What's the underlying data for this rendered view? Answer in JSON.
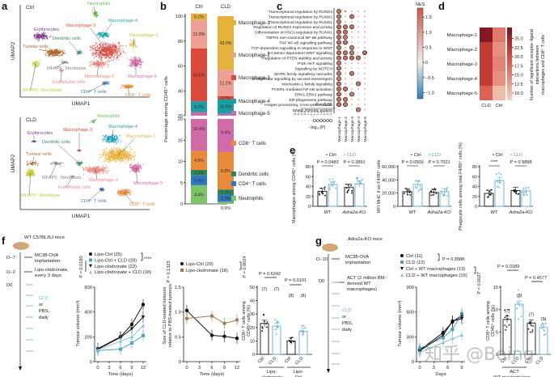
{
  "panel_labels": {
    "a": "a",
    "b": "b",
    "c": "c",
    "d": "d",
    "e": "e",
    "f": "f",
    "g": "g"
  },
  "watermark": "知乎 @Being",
  "chart_data": [
    {
      "id": "a-ctrl",
      "type": "scatter",
      "title": "Ctrl",
      "xlabel": "UMAP1",
      "ylabel": "UMAP2",
      "clusters": [
        {
          "name": "Neutrophils",
          "color": "#6abf4b"
        },
        {
          "name": "Macrophage-4",
          "color": "#1aa3b5"
        },
        {
          "name": "Macrophage-3",
          "color": "#d9463b"
        },
        {
          "name": "Macrophage-1",
          "color": "#e6b13a"
        },
        {
          "name": "Erythrocytes",
          "color": "#7b2f8e"
        },
        {
          "name": "Dendritic cells",
          "color": "#2e8b57"
        },
        {
          "name": "Tumour cells",
          "color": "#b4652a"
        },
        {
          "name": "MFAP5⁻ fibroblasts",
          "color": "#888888"
        },
        {
          "name": "Macrophage-2",
          "color": "#e8857a"
        },
        {
          "name": "Macrophage-5",
          "color": "#d16aa8"
        },
        {
          "name": "Endothelial cells",
          "color": "#e8889a"
        },
        {
          "name": "MFAP5⁺ fibroblasts",
          "color": "#c9c93a"
        },
        {
          "name": "CD4⁺ T cells",
          "color": "#2f78c2"
        },
        {
          "name": "CD8⁺ T cells",
          "color": "#e98b3a"
        }
      ]
    },
    {
      "id": "a-cld",
      "type": "scatter",
      "title": "CLD",
      "xlabel": "UMAP1",
      "ylabel": "UMAP2",
      "clusters": [
        {
          "name": "Neutrophils",
          "color": "#6abf4b"
        },
        {
          "name": "Erythrocytes",
          "color": "#7b2f8e"
        },
        {
          "name": "Macrophage-3",
          "color": "#d9463b"
        },
        {
          "name": "Macrophage-4",
          "color": "#1aa3b5"
        },
        {
          "name": "Macrophage-1",
          "color": "#e6b13a"
        },
        {
          "name": "Dendritic cells",
          "color": "#2e8b57"
        },
        {
          "name": "Tumour cells",
          "color": "#b4652a"
        },
        {
          "name": "MFAP5⁻ fibroblasts",
          "color": "#888888"
        },
        {
          "name": "Macrophage-2",
          "color": "#e8857a"
        },
        {
          "name": "Macrophage-5",
          "color": "#d16aa8"
        },
        {
          "name": "Endothelial cells",
          "color": "#e8889a"
        },
        {
          "name": "MFAP5⁺ fibroblasts",
          "color": "#c9c93a"
        },
        {
          "name": "CD4⁺ T cells",
          "color": "#2f78c2"
        },
        {
          "name": "CD8⁺ T cells",
          "color": "#e98b3a"
        }
      ]
    },
    {
      "id": "b",
      "type": "bar",
      "stacked": true,
      "categories": [
        "Ctrl",
        "CLD"
      ],
      "ylabel": "Percentage among CD45⁺ cells",
      "yticks_upper": [
        20,
        40,
        60,
        80,
        100
      ],
      "yticks_lower": [
        0,
        5,
        10,
        15,
        20
      ],
      "series": [
        {
          "name": "Neutrophils",
          "color": "#7cc36a",
          "values": [
            4.4,
            0.5
          ],
          "labels": [
            "4.4%",
            "0.5%"
          ]
        },
        {
          "name": "CD4⁺ T cells",
          "color": "#2f78c2",
          "values": [
            2.3,
            1.7
          ],
          "labels": [
            "2.3%",
            "1.7%"
          ]
        },
        {
          "name": "Dendritic cells",
          "color": "#2e8b57",
          "values": [
            1.3,
            1.2
          ],
          "labels": [
            "1.3%",
            "1.2%"
          ]
        },
        {
          "name": "CD8⁺ T cells",
          "color": "#e98b3a",
          "values": [
            4.5,
            8.8
          ],
          "labels": [
            "4.5%",
            "8.8%"
          ]
        },
        {
          "name": "Macrophage-5",
          "color": "#d16aa8",
          "values": [
            10.4,
            9.4
          ],
          "labels": [
            "10.4%",
            "9.4%"
          ]
        },
        {
          "name": "Macrophage-4",
          "color": "#1a9fa6",
          "values": [
            8.7,
            11.5
          ],
          "labels": [
            "8.7%",
            "11.5%"
          ]
        },
        {
          "name": "Macrophage-3",
          "color": "#d94a3b",
          "values": [
            42.6,
            2.7
          ],
          "labels": [
            "42.6%",
            "2.7%"
          ]
        },
        {
          "name": "Macrophage-2",
          "color": "#ec9f92",
          "values": [
            22.8,
            21.2
          ],
          "labels": [
            "22.8%",
            "21.2%"
          ]
        },
        {
          "name": "Macrophage-1",
          "color": "#e6b13a",
          "values": [
            5.1,
            43.0
          ],
          "labels": [
            "5.1%",
            "43.0%"
          ]
        }
      ],
      "legend": [
        "Macrophage-1",
        "Macrophage-2",
        "Macrophage-3",
        "Macrophage-4",
        "Macrophage-5",
        "CD8⁺ T cells",
        "Dendritic cells",
        "CD4⁺ T cells",
        "Neutrophils"
      ]
    },
    {
      "id": "c",
      "type": "heatmap",
      "subtype": "dotplot",
      "rows": [
        "Transcriptional regulation by RUNX3",
        "Transcriptional regulation by RUNX2",
        "Transcriptional regulation by RUNX1",
        "Regulation of RUNX2 expression and activity",
        "Differentiation of HSCs regulated by RUNX1",
        "TNFR2 non-canonical NF-κB pathway",
        "TNF NF-κB signalling pathway",
        "TCF-dependent signalling in response to WNT",
        "β-Catenin-dependent WNT signalling",
        "Regulation of PTEN stability and activity",
        "PI3K AKT signalling",
        "Signalling by NOTCH",
        "MAPK family signalling cascades",
        "Intracellular signalling by second messengers",
        "Interleukin-1 family signalling",
        "FCER1-mediated NF-κB activation",
        "ERK1 ERK2 pathway",
        "ER-phagosome pathway",
        "Antigen processing, cross-presentation",
        "Innate immune system"
      ],
      "columns": [
        "Macrophage-1",
        "Macrophage-2",
        "Macrophage-3",
        "Macrophage-4",
        "Macrophage-5"
      ],
      "nes": [
        [
          1.5,
          1.2,
          1.0,
          0.8,
          0.9
        ],
        [
          1.5,
          1.0,
          1.5,
          0.8,
          0.9
        ],
        [
          1.4,
          1.0,
          0.6,
          0.4,
          0.8
        ],
        [
          1.6,
          1.5,
          1.5,
          0.8,
          0.9
        ],
        [
          1.6,
          1.5,
          1.0,
          0.8,
          0.9
        ],
        [
          1.6,
          1.4,
          0.9,
          0.7,
          0.8
        ],
        [
          1.6,
          1.5,
          0.8,
          0.6,
          0.9
        ],
        [
          1.5,
          1.0,
          1.4,
          0.8,
          0.9
        ],
        [
          1.6,
          1.5,
          1.4,
          0.6,
          1.6
        ],
        [
          1.6,
          1.5,
          1.6,
          1.5,
          0.9
        ],
        [
          1.5,
          1.0,
          0.8,
          0.6,
          0.9
        ],
        [
          1.5,
          0.9,
          0.6,
          0.5,
          0.8
        ],
        [
          1.5,
          0.9,
          1.5,
          -0.3,
          0.8
        ],
        [
          1.4,
          0.8,
          0.5,
          0.3,
          0.8
        ],
        [
          1.5,
          1.0,
          0.6,
          1.5,
          0.9
        ],
        [
          1.6,
          1.5,
          0.8,
          0.6,
          0.9
        ],
        [
          1.6,
          0.9,
          1.4,
          -0.3,
          0.8
        ],
        [
          1.6,
          1.5,
          0.9,
          0.6,
          0.9
        ],
        [
          1.6,
          1.5,
          0.9,
          0.6,
          0.9
        ],
        [
          0.6,
          0.5,
          0.3,
          1.4,
          -0.5
        ]
      ],
      "sig": [
        [
          1,
          0,
          0,
          0,
          0
        ],
        [
          1,
          0,
          1,
          0,
          0
        ],
        [
          1,
          0,
          0,
          0,
          0
        ],
        [
          1,
          1,
          1,
          0,
          0
        ],
        [
          1,
          1,
          0,
          0,
          0
        ],
        [
          1,
          1,
          0,
          0,
          0
        ],
        [
          1,
          1,
          0,
          0,
          0
        ],
        [
          1,
          0,
          1,
          0,
          0
        ],
        [
          1,
          1,
          1,
          0,
          1
        ],
        [
          1,
          1,
          1,
          1,
          0
        ],
        [
          1,
          0,
          0,
          0,
          0
        ],
        [
          1,
          0,
          0,
          0,
          0
        ],
        [
          1,
          0,
          1,
          0,
          0
        ],
        [
          1,
          0,
          0,
          0,
          0
        ],
        [
          1,
          0,
          0,
          1,
          0
        ],
        [
          1,
          1,
          0,
          0,
          0
        ],
        [
          1,
          0,
          1,
          0,
          0
        ],
        [
          1,
          1,
          0,
          0,
          0
        ],
        [
          1,
          1,
          0,
          0,
          0
        ],
        [
          0,
          0,
          0,
          1,
          0
        ]
      ],
      "size_legend": {
        "ticks": [
          "0.2",
          "0.4",
          "0.6",
          "0.8",
          "1.0",
          "1.2",
          "1.4",
          "1.6",
          "1.8",
          "2.0",
          "2.2",
          "2.4"
        ],
        "label": "−log₁₀(P)",
        "threshold": "P < 0.05"
      },
      "colorbar": {
        "title": "NES",
        "ticks": [
          "1.5",
          "1.0",
          "0.5",
          "0",
          "−0.5",
          "−1.0"
        ],
        "min": -1.2,
        "max": 1.8,
        "low": "#2a7fb8",
        "mid": "#f2f0ee",
        "high": "#c65a45"
      }
    },
    {
      "id": "d",
      "type": "heatmap",
      "rows": [
        "Macrophage-1",
        "Macrophage-2",
        "Macrophage-3",
        "Macrophage-4",
        "Macrophage-5"
      ],
      "columns": [
        "CLD",
        "Ctrl"
      ],
      "values": [
        [
          27,
          16
        ],
        [
          22,
          14
        ],
        [
          22,
          15
        ],
        [
          22,
          14
        ],
        [
          18,
          10
        ]
      ],
      "colorbar": {
        "ticks": [
          "25.0",
          "22.5",
          "20.0",
          "17.5",
          "15.0",
          "12.5",
          "10.0"
        ],
        "min": 8,
        "max": 28,
        "label": "Number of significant receptor–ligand interactions between macrophages and CD8⁺ T cells",
        "low": "#f3d3c2",
        "high": "#7a1020"
      }
    },
    {
      "id": "e1",
      "type": "bar",
      "legend": [
        "Ctrl",
        "CLD"
      ],
      "categories": [
        "WT",
        "Adra2a-KO"
      ],
      "ylabel": "Macrophages among CD45⁺ cells (%)",
      "ylim": [
        0,
        80
      ],
      "yticks": [
        "0",
        "20",
        "40",
        "60",
        "80"
      ],
      "series": [
        {
          "name": "Ctrl",
          "values": [
            30,
            38
          ]
        },
        {
          "name": "CLD",
          "values": [
            44,
            45
          ]
        }
      ],
      "pvalues": [
        "P = 0.0483",
        "P = 0.3891"
      ]
    },
    {
      "id": "e2",
      "type": "bar",
      "legend": [
        "Ctrl",
        "CLD"
      ],
      "categories": [
        "WT",
        "Adra2a-KO"
      ],
      "ylabel": "MFI MHC II on F4/80⁺ cells",
      "ylim": [
        0,
        60000
      ],
      "yticks": [
        "0",
        "20,000",
        "40,000",
        "60,000"
      ],
      "series": [
        {
          "name": "Ctrl",
          "values": [
            22000,
            21000
          ]
        },
        {
          "name": "CLD",
          "values": [
            33000,
            22000
          ]
        }
      ],
      "pvalues": [
        "P = 0.0500",
        "P = 0.7021"
      ]
    },
    {
      "id": "e3",
      "type": "bar",
      "legend": [
        "Ctrl",
        "CLD"
      ],
      "categories": [
        "WT",
        "Adra2a-KO"
      ],
      "ylabel": "Phagocytic cells among total F4/80⁺ cells (%)",
      "ylim": [
        0,
        80
      ],
      "yticks": [
        "0",
        "20",
        "40",
        "60",
        "80"
      ],
      "series": [
        {
          "name": "Ctrl",
          "values": [
            26,
            32
          ]
        },
        {
          "name": "CLD",
          "values": [
            52,
            31
          ]
        }
      ],
      "pvalues": [
        "****",
        "P = 0.9898"
      ]
    },
    {
      "id": "f-schematic",
      "type": "table",
      "title": "WT C57BL/6J mice",
      "events": [
        {
          "day": "D−7",
          "text": "MC38-OVA implantation"
        },
        {
          "day": "D−2",
          "text": "Lipo-clodronate, every 3 days"
        },
        {
          "day": "D0",
          "text": ""
        }
      ],
      "treatment": [
        "CLD",
        "or",
        "PBS,",
        "daily"
      ]
    },
    {
      "id": "f1",
      "type": "line",
      "xlabel": "Time (days)",
      "ylabel": "Tumour volume (mm³)",
      "x": [
        0,
        6,
        9,
        12
      ],
      "ylim": [
        0,
        600
      ],
      "yticks": [
        "0",
        "200",
        "400",
        "600"
      ],
      "xticks": [
        "0",
        "3",
        "6",
        "9",
        "12"
      ],
      "series": [
        {
          "name": "Lipo-Ctrl (25)",
          "marker": "circle",
          "color": "#111111",
          "values": [
            105,
            200,
            300,
            460
          ]
        },
        {
          "name": "Lipo-Ctrl + CLD (29)",
          "marker": "square",
          "color": "#4aa3c8",
          "values": [
            90,
            100,
            150,
            210
          ]
        },
        {
          "name": "Lipo-clodronate (23)",
          "marker": "triangle-down",
          "color": "#111111",
          "values": [
            100,
            195,
            265,
            360
          ]
        },
        {
          "name": "Lipo-clodronate + CLD (18)",
          "marker": "triangle-up",
          "color": "#7ec3dc",
          "values": [
            95,
            165,
            200,
            290
          ]
        }
      ],
      "annotations": [
        "****",
        "P = 0.0160"
      ]
    },
    {
      "id": "f2",
      "type": "line",
      "xlabel": "Time (days)",
      "ylabel": "Size of CLD-treated tumours relative to PBS-treated tumours",
      "x": [
        0,
        6,
        9,
        12
      ],
      "ylim": [
        0,
        1.5
      ],
      "yticks": [
        "0",
        "0.5",
        "1.0",
        "1.5"
      ],
      "xticks": [
        "0",
        "3",
        "6",
        "9",
        "12"
      ],
      "series": [
        {
          "name": "Lipo-Ctrl (29)",
          "color": "#111111",
          "values": [
            1.03,
            0.53,
            0.51,
            0.47
          ]
        },
        {
          "name": "Lipo-clodronate (18)",
          "color": "#a87a4a",
          "values": [
            0.87,
            0.92,
            0.77,
            0.84
          ]
        }
      ],
      "annotations": [
        "P = 0.1323",
        "P = 0.0024"
      ]
    },
    {
      "id": "f3",
      "type": "bar",
      "categories": [
        "Ctrl",
        "CLD",
        "Ctrl",
        "CLD"
      ],
      "groups": [
        "Lipo-clodronate",
        "Lipo-Ctrl"
      ],
      "ylabel": "CD8⁺ T cells among CD45⁺ cells (%)",
      "ylim": [
        0,
        50
      ],
      "yticks": [
        "0",
        "10",
        "20",
        "30",
        "40",
        "50"
      ],
      "values": [
        23,
        21,
        10,
        17
      ],
      "n": [
        "(7)",
        "(7)",
        "(8)",
        "(8)"
      ],
      "pvalues": [
        "P = 0.6242",
        "P = 0.0101"
      ]
    },
    {
      "id": "g-schematic",
      "type": "table",
      "title": "Adra2a-KO mice",
      "events": [
        {
          "day": "D−10",
          "text": "MC38-OVA implantation"
        },
        {
          "day": "D0",
          "text": "ACT (2 million BM-derived WT macrophages)"
        }
      ],
      "treatment": [
        "CLD",
        "or",
        "PBS,",
        "daily"
      ]
    },
    {
      "id": "g1",
      "type": "line",
      "xlabel": "Days",
      "ylabel": "Tumour volume (mm³)",
      "x": [
        0,
        5,
        7,
        9
      ],
      "ylim": [
        0,
        900
      ],
      "yticks": [
        "0",
        "300",
        "600",
        "900"
      ],
      "xticks": [
        "0",
        "3",
        "6",
        "9"
      ],
      "series": [
        {
          "name": "Ctrl (11)",
          "marker": "circle",
          "color": "#111111",
          "values": [
            140,
            350,
            480,
            560
          ]
        },
        {
          "name": "CLD (12)",
          "marker": "square",
          "color": "#4aa3c8",
          "values": [
            160,
            290,
            390,
            580
          ]
        },
        {
          "name": "Ctrl + WT macrophages (13)",
          "marker": "triangle-down",
          "color": "#111111",
          "values": [
            130,
            320,
            490,
            520
          ]
        },
        {
          "name": "CLD + WT macrophages (16)",
          "marker": "triangle-up",
          "color": "#7ec3dc",
          "values": [
            110,
            230,
            280,
            320
          ]
        }
      ],
      "annotations": [
        "P = 0.3588",
        "P = 0.0027"
      ]
    },
    {
      "id": "g2",
      "type": "bar",
      "categories": [
        "Ctrl",
        "CLD",
        "Ctrl",
        "CLD"
      ],
      "groups": [
        "ACT WT macrophages"
      ],
      "ylabel": "CD8⁺ T cells among CD45⁺ cells (%)",
      "ylim": [
        0,
        15
      ],
      "yticks": [
        "0",
        "5",
        "10",
        "15"
      ],
      "values": [
        7.8,
        11.2,
        7.0,
        6.0
      ],
      "n": [
        "(7)",
        "(8)",
        "(7)",
        "(9)"
      ],
      "pvalues": [
        "P = 0.0189",
        "P = 0.4577"
      ]
    }
  ]
}
